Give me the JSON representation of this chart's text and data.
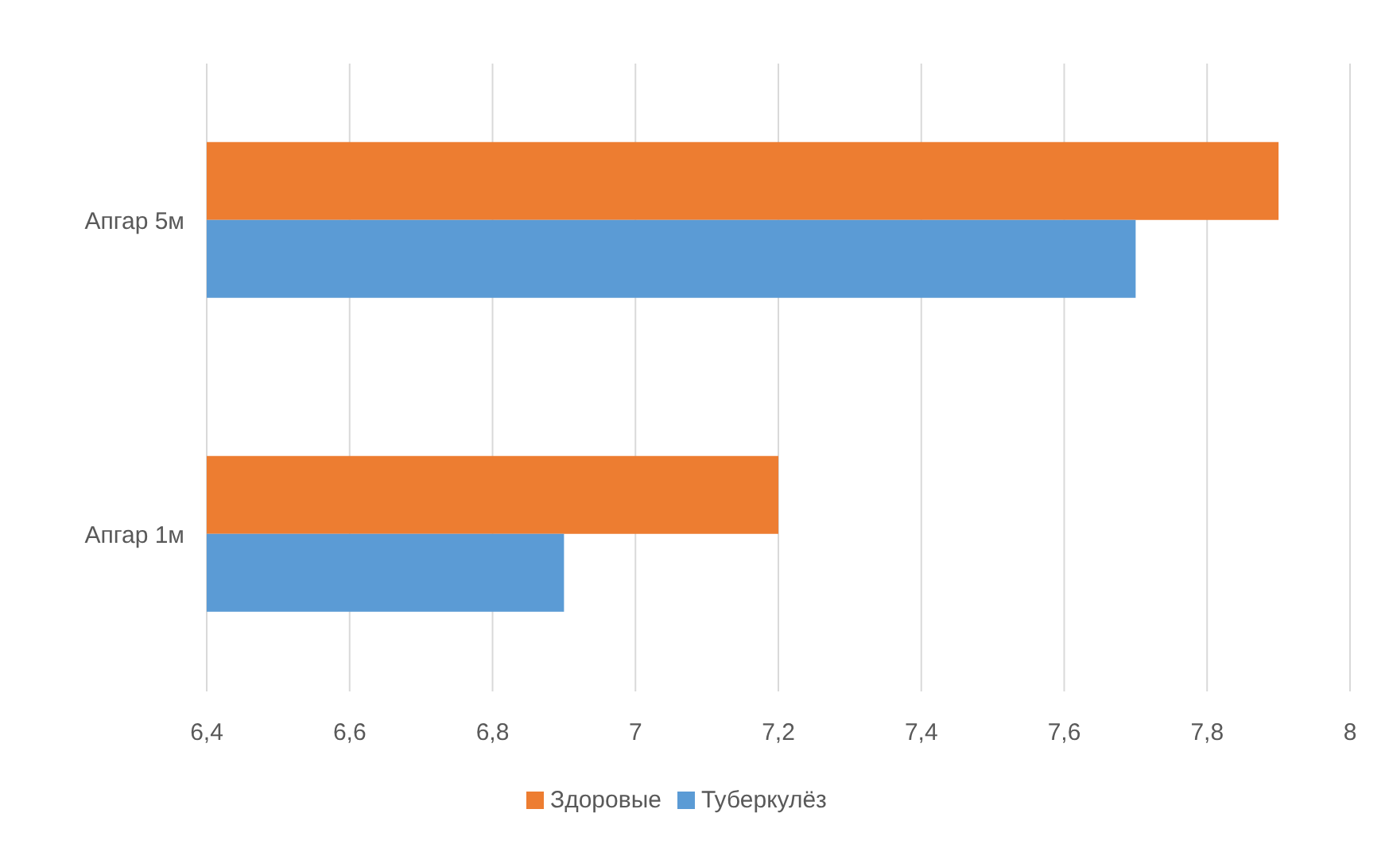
{
  "chart_data": {
    "type": "bar",
    "orientation": "horizontal",
    "categories": [
      "Апгар 5м",
      "Апгар 1м"
    ],
    "series": [
      {
        "name": "Здоровые",
        "color": "#ed7d31",
        "values": [
          7.9,
          7.2
        ]
      },
      {
        "name": "Туберкулёз",
        "color": "#5b9bd5",
        "values": [
          7.7,
          6.9
        ]
      }
    ],
    "xlim": [
      6.4,
      8
    ],
    "xticks": [
      {
        "value": 6.4,
        "label": "6,4"
      },
      {
        "value": 6.6,
        "label": "6,6"
      },
      {
        "value": 6.8,
        "label": "6,8"
      },
      7,
      {
        "value": 7.2,
        "label": "7,2"
      },
      {
        "value": 7.4,
        "label": "7,4"
      },
      {
        "value": 7.6,
        "label": "7,6"
      },
      {
        "value": 7.8,
        "label": "7,8"
      },
      8
    ],
    "grid": "x",
    "legend": "bottom"
  }
}
